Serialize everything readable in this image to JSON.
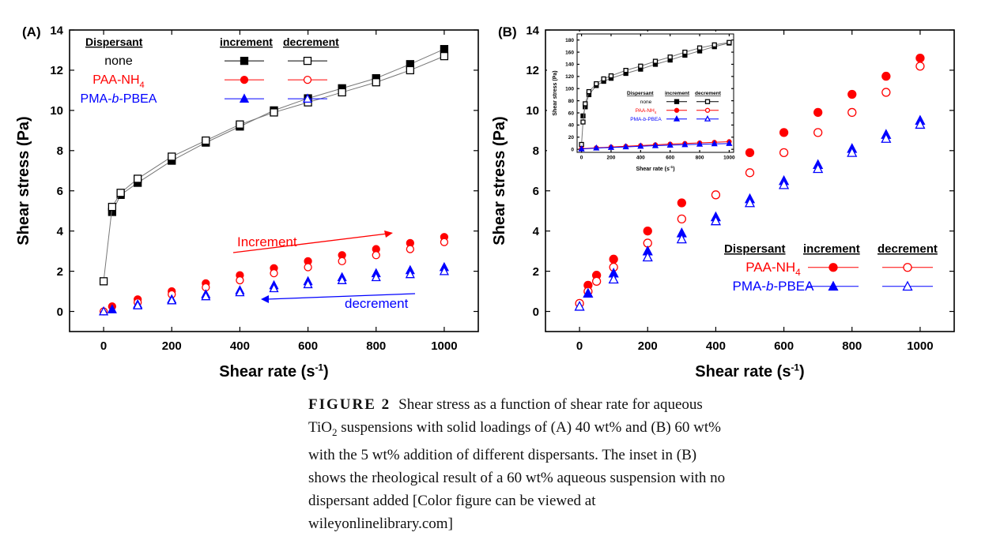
{
  "colors": {
    "none": "#000000",
    "paa": "#ff0000",
    "pma": "#0000ff"
  },
  "caption": {
    "label": "FIGURE 2",
    "line1": "Shear stress as a function of shear rate for aqueous",
    "line2a": "TiO",
    "line2sub": "2",
    "line2b": " suspensions with solid loadings of (A) 40 wt% and (B) 60 wt%",
    "line3": "with the 5 wt% addition of different dispersants. The inset in (B)",
    "line4": "shows the rheological result of a 60 wt% aqueous suspension with no",
    "line5": "dispersant added [Color figure can be viewed at",
    "line6": "wileyonlinelibrary.com]"
  },
  "chart_data": [
    {
      "type": "scatter",
      "panel": "(A)",
      "xlabel": "Shear rate (s-1)",
      "ylabel": "Shear stress (Pa)",
      "xlim": [
        -100,
        1100
      ],
      "ylim": [
        -1,
        14
      ],
      "xticks": [
        "0",
        "200",
        "400",
        "600",
        "800",
        "1000"
      ],
      "yticks": [
        "0",
        "2",
        "4",
        "6",
        "8",
        "10",
        "12",
        "14"
      ],
      "legend": {
        "header": [
          "Dispersant",
          "increment",
          "decrement"
        ],
        "rows": [
          {
            "name": "none",
            "color": "#000000",
            "marker": "square"
          },
          {
            "name": "PAA-NH",
            "sub": "4",
            "color": "#ff0000",
            "marker": "circle"
          },
          {
            "name": "PMA-",
            "italic": "b",
            "tail": "-PBEA",
            "color": "#0000ff",
            "marker": "triangle"
          }
        ],
        "placement": "top-left"
      },
      "annotations": {
        "increment": "Increment",
        "decrement": "decrement"
      },
      "series": [
        {
          "name": "none",
          "direction": "increment",
          "x": [
            25,
            50,
            100,
            200,
            300,
            400,
            500,
            600,
            700,
            800,
            900,
            1000
          ],
          "y": [
            4.95,
            5.8,
            6.4,
            7.5,
            8.4,
            9.2,
            10.0,
            10.6,
            11.1,
            11.6,
            12.3,
            13.05
          ]
        },
        {
          "name": "none",
          "direction": "decrement",
          "x": [
            0,
            25,
            50,
            100,
            200,
            300,
            400,
            500,
            600,
            700,
            800,
            900,
            1000
          ],
          "y": [
            1.5,
            5.2,
            5.9,
            6.6,
            7.7,
            8.5,
            9.3,
            9.9,
            10.4,
            10.9,
            11.4,
            12.0,
            12.7
          ]
        },
        {
          "name": "PAA-NH4",
          "direction": "increment",
          "x": [
            25,
            100,
            200,
            300,
            400,
            500,
            600,
            700,
            800,
            900,
            1000
          ],
          "y": [
            0.25,
            0.6,
            1.0,
            1.4,
            1.8,
            2.15,
            2.5,
            2.8,
            3.1,
            3.4,
            3.7
          ]
        },
        {
          "name": "PAA-NH4",
          "direction": "decrement",
          "x": [
            0,
            100,
            200,
            300,
            400,
            500,
            600,
            700,
            800,
            900,
            1000
          ],
          "y": [
            0.0,
            0.45,
            0.85,
            1.2,
            1.55,
            1.9,
            2.2,
            2.5,
            2.8,
            3.1,
            3.45
          ]
        },
        {
          "name": "PMA-b-PBEA",
          "direction": "increment",
          "x": [
            25,
            100,
            200,
            300,
            400,
            500,
            600,
            700,
            800,
            900,
            1000
          ],
          "y": [
            0.1,
            0.35,
            0.6,
            0.85,
            1.05,
            1.3,
            1.5,
            1.7,
            1.9,
            2.05,
            2.2
          ]
        },
        {
          "name": "PMA-b-PBEA",
          "direction": "decrement",
          "x": [
            0,
            100,
            200,
            300,
            400,
            500,
            600,
            700,
            800,
            900,
            1000
          ],
          "y": [
            0.0,
            0.3,
            0.55,
            0.75,
            0.95,
            1.15,
            1.35,
            1.55,
            1.7,
            1.85,
            2.0
          ]
        }
      ]
    },
    {
      "type": "scatter",
      "panel": "(B)",
      "xlabel": "Shear rate (s-1)",
      "ylabel": "Shear stress (Pa)",
      "xlim": [
        -100,
        1100
      ],
      "ylim": [
        -1,
        14
      ],
      "xticks": [
        "0",
        "200",
        "400",
        "600",
        "800",
        "1000"
      ],
      "yticks": [
        "0",
        "2",
        "4",
        "6",
        "8",
        "10",
        "12",
        "14"
      ],
      "legend": {
        "header": [
          "Dispersant",
          "increment",
          "decrement"
        ],
        "rows": [
          {
            "name": "PAA-NH",
            "sub": "4",
            "color": "#ff0000",
            "marker": "circle"
          },
          {
            "name": "PMA-",
            "italic": "b",
            "tail": "-PBEA",
            "color": "#0000ff",
            "marker": "triangle"
          }
        ],
        "placement": "bottom-right"
      },
      "series": [
        {
          "name": "PAA-NH4",
          "direction": "increment",
          "x": [
            25,
            50,
            100,
            200,
            300,
            400,
            500,
            600,
            700,
            800,
            900,
            1000
          ],
          "y": [
            1.3,
            1.8,
            2.6,
            4.0,
            5.4,
            6.8,
            7.9,
            8.9,
            9.9,
            10.8,
            11.7,
            12.6
          ]
        },
        {
          "name": "PAA-NH4",
          "direction": "decrement",
          "x": [
            0,
            25,
            50,
            100,
            200,
            300,
            400,
            500,
            600,
            700,
            800,
            900,
            1000
          ],
          "y": [
            0.4,
            1.0,
            1.5,
            2.2,
            3.4,
            4.6,
            5.8,
            6.9,
            7.9,
            8.9,
            9.9,
            10.9,
            12.2
          ]
        },
        {
          "name": "PMA-b-PBEA",
          "direction": "increment",
          "x": [
            25,
            100,
            200,
            300,
            400,
            500,
            600,
            700,
            800,
            900,
            1000
          ],
          "y": [
            0.9,
            1.9,
            3.0,
            3.9,
            4.7,
            5.6,
            6.5,
            7.3,
            8.1,
            8.8,
            9.5
          ]
        },
        {
          "name": "PMA-b-PBEA",
          "direction": "decrement",
          "x": [
            0,
            100,
            200,
            300,
            400,
            500,
            600,
            700,
            800,
            900,
            1000
          ],
          "y": [
            0.25,
            1.6,
            2.7,
            3.6,
            4.5,
            5.4,
            6.3,
            7.1,
            7.9,
            8.6,
            9.3
          ]
        }
      ]
    },
    {
      "type": "scatter",
      "panel": "inset of (B)",
      "xlabel": "Shear rate (s-1)",
      "ylabel": "Shear stress (Pa)",
      "xlim": [
        -30,
        1030
      ],
      "ylim": [
        -5,
        190
      ],
      "xticks": [
        "0",
        "200",
        "400",
        "600",
        "800",
        "1000"
      ],
      "yticks": [
        "0",
        "20",
        "40",
        "60",
        "80",
        "100",
        "120",
        "140",
        "160",
        "180"
      ],
      "legend": {
        "header": [
          "Dispersant",
          "increment",
          "decrement"
        ],
        "rows": [
          {
            "name": "none",
            "color": "#000000",
            "marker": "square"
          },
          {
            "name": "PAA-NH",
            "sub": "4",
            "color": "#ff0000",
            "marker": "circle"
          },
          {
            "name": "PMA-",
            "italic": "b",
            "tail": "-PBEA",
            "color": "#0000ff",
            "marker": "triangle"
          }
        ],
        "placement": "center-right"
      },
      "series": [
        {
          "name": "none",
          "direction": "increment",
          "x": [
            10,
            25,
            50,
            100,
            150,
            200,
            300,
            400,
            500,
            600,
            700,
            800,
            900,
            1000
          ],
          "y": [
            55,
            70,
            90,
            105,
            112,
            117,
            125,
            132,
            140,
            147,
            155,
            162,
            169,
            175
          ]
        },
        {
          "name": "none",
          "direction": "decrement",
          "x": [
            0,
            10,
            25,
            50,
            100,
            150,
            200,
            300,
            400,
            500,
            600,
            700,
            800,
            900,
            1000
          ],
          "y": [
            8,
            45,
            75,
            95,
            108,
            116,
            121,
            130,
            137,
            145,
            152,
            160,
            167,
            172,
            176
          ]
        },
        {
          "name": "PAA-NH4",
          "direction": "increment",
          "x": [
            0,
            100,
            200,
            300,
            400,
            500,
            600,
            700,
            800,
            900,
            1000
          ],
          "y": [
            1,
            2.5,
            3.8,
            5,
            6.2,
            7.4,
            8.6,
            9.6,
            10.6,
            11.6,
            12.6
          ]
        },
        {
          "name": "PMA-b-PBEA",
          "direction": "increment",
          "x": [
            0,
            100,
            200,
            300,
            400,
            500,
            600,
            700,
            800,
            900,
            1000
          ],
          "y": [
            0.5,
            2,
            3,
            4,
            5,
            6,
            6.8,
            7.6,
            8.4,
            9,
            9.5
          ]
        }
      ]
    }
  ]
}
